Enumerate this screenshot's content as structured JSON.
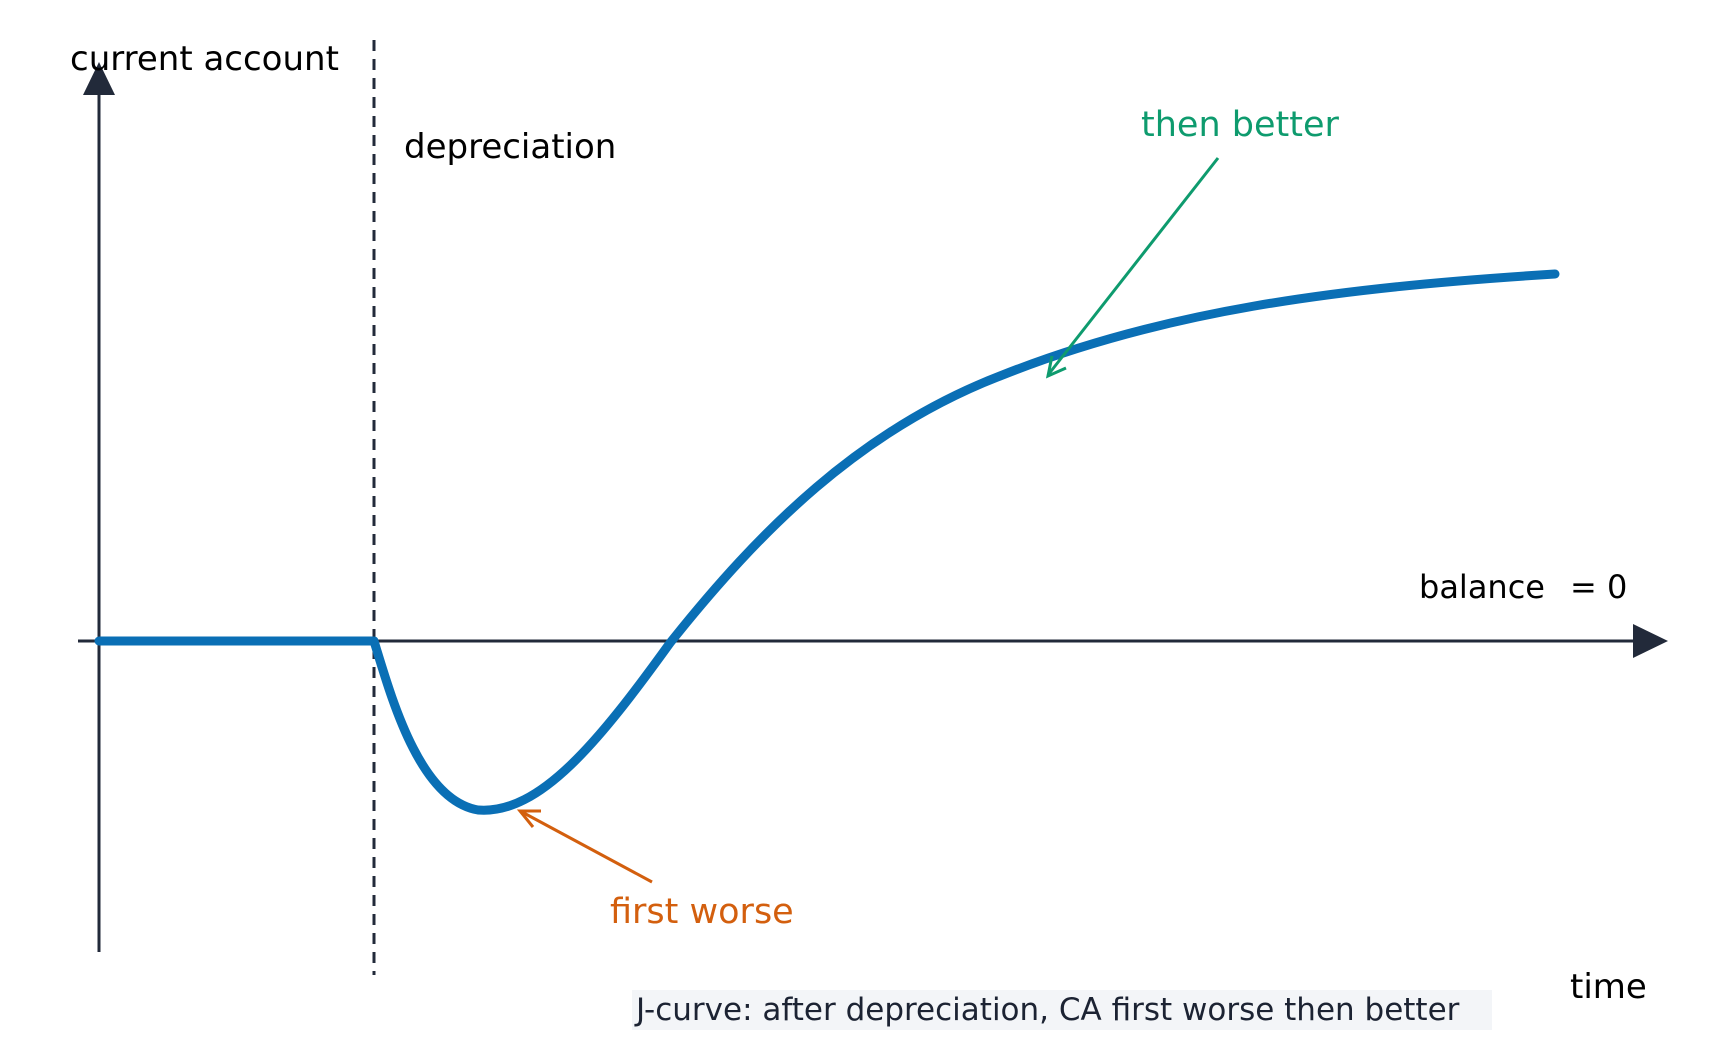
{
  "labels": {
    "y_axis": "current account",
    "x_axis": "time",
    "event": "depreciation",
    "baseline": "balance",
    "baseline_value": "= 0",
    "worse": "first worse",
    "better": "then better",
    "caption": "J-curve: after depreciation, CA first worse then better"
  },
  "colors": {
    "axis": "#222a3a",
    "curve": "#0a6fb5",
    "worse": "#d35f0e",
    "better": "#0e9b6e",
    "text": "#000000",
    "caption_bg": "#f3f5f8"
  }
}
